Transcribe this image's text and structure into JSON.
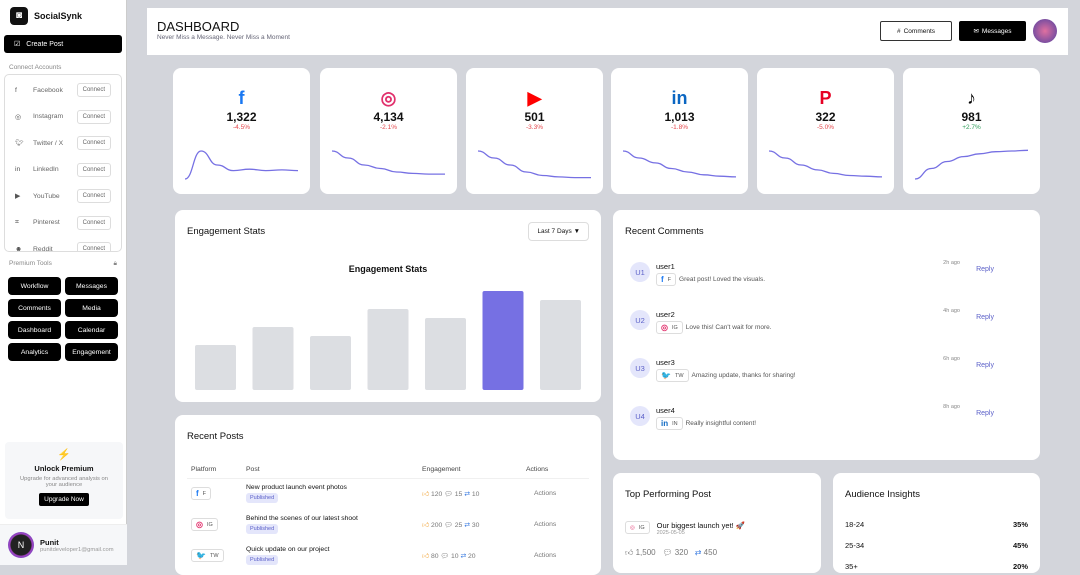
{
  "app": {
    "name": "SocialSynk",
    "create_post": "Create Post"
  },
  "sidebar": {
    "connect_title": "Connect Accounts",
    "connect_label": "Connect",
    "accounts": [
      {
        "name": "Facebook",
        "icon": "facebook-icon"
      },
      {
        "name": "Instagram",
        "icon": "instagram-icon"
      },
      {
        "name": "Twitter / X",
        "icon": "twitter-icon"
      },
      {
        "name": "LinkedIn",
        "icon": "linkedin-icon"
      },
      {
        "name": "YouTube",
        "icon": "youtube-icon"
      },
      {
        "name": "Pinterest",
        "icon": "pinterest-icon"
      },
      {
        "name": "Reddit",
        "icon": "reddit-icon"
      }
    ],
    "premium_title": "Premium Tools",
    "tools": [
      "Workflow",
      "Messages",
      "Comments",
      "Media",
      "Dashboard",
      "Calendar",
      "Analytics",
      "Engagement"
    ],
    "promo": {
      "title": "Unlock Premium",
      "desc": "Upgrade for advanced analysis on your audience",
      "button": "Upgrade Now"
    },
    "user": {
      "name": "Punit",
      "email": "punitdeveloper1@gmail.com",
      "initial": "N"
    }
  },
  "header": {
    "title": "DASHBOARD",
    "subtitle": "Never Miss a Message. Never Miss a Moment",
    "comments": "Comments",
    "messages": "Messages"
  },
  "stats": [
    {
      "platform": "facebook",
      "glyph": "f",
      "color": "#1877f2",
      "value": "1,322",
      "change": "-4.5%",
      "trend": [
        2,
        6,
        4,
        3.2,
        3.4,
        3.2,
        3.3,
        3.2
      ]
    },
    {
      "platform": "instagram",
      "glyph": "◎",
      "color": "#e1306c",
      "value": "4,134",
      "change": "-2.1%",
      "trend": [
        6,
        5,
        4,
        3.5,
        3,
        2.8,
        2.7,
        2.7
      ]
    },
    {
      "platform": "youtube",
      "glyph": "▶",
      "color": "#ff0000",
      "value": "501",
      "change": "-3.3%",
      "trend": [
        6,
        5,
        4,
        3,
        2.5,
        2.3,
        2.2,
        2.2
      ]
    },
    {
      "platform": "linkedin",
      "glyph": "in",
      "color": "#0a66c2",
      "value": "1,013",
      "change": "-1.8%",
      "trend": [
        6,
        5,
        4.3,
        3.5,
        3,
        2.6,
        2.4,
        2.3
      ]
    },
    {
      "platform": "pinterest",
      "glyph": "P",
      "color": "#e60023",
      "value": "322",
      "change": "-5.0%",
      "trend": [
        6,
        5,
        4,
        3.3,
        2.8,
        2.5,
        2.4,
        2.3
      ]
    },
    {
      "platform": "tiktok",
      "glyph": "♪",
      "color": "#000000",
      "value": "981",
      "change": "+2.7%",
      "trend": [
        2,
        3.5,
        4.5,
        5.2,
        5.6,
        5.9,
        6,
        6.1
      ]
    }
  ],
  "colors": {
    "negative": "#e5484d",
    "positive": "#2f9e5a",
    "accent": "#7670e3",
    "bar": "#dcdee2"
  },
  "engagement": {
    "title": "Engagement Stats",
    "range": "Last 7 Days ▼",
    "chart_data": {
      "type": "bar",
      "title": "Engagement Stats",
      "values": [
        45,
        63,
        54,
        81,
        72,
        99,
        90
      ],
      "highlight_index": 5
    }
  },
  "comments": {
    "title": "Recent Comments",
    "reply": "Reply",
    "items": [
      {
        "avatar": "U1",
        "user": "user1",
        "tag": "F",
        "glyph": "f",
        "color": "#1877f2",
        "text": "Great post! Loved the visuals.",
        "time": "2h ago"
      },
      {
        "avatar": "U2",
        "user": "user2",
        "tag": "IG",
        "glyph": "◎",
        "color": "#e1306c",
        "text": "Love this! Can't wait for more.",
        "time": "4h ago"
      },
      {
        "avatar": "U3",
        "user": "user3",
        "tag": "TW",
        "glyph": "🐦",
        "color": "#1da1f2",
        "text": "Amazing update, thanks for sharing!",
        "time": "6h ago"
      },
      {
        "avatar": "U4",
        "user": "user4",
        "tag": "IN",
        "glyph": "in",
        "color": "#0a66c2",
        "text": "Really insightful content!",
        "time": "8h ago"
      }
    ]
  },
  "posts": {
    "title": "Recent Posts",
    "columns": [
      "Platform",
      "Post",
      "Engagement",
      "Actions"
    ],
    "rows": [
      {
        "tag": "F",
        "glyph": "f",
        "color": "#1877f2",
        "post": "New product launch event photos",
        "status": "Published",
        "likes": "120",
        "comments": "15",
        "shares": "10",
        "action": "Actions"
      },
      {
        "tag": "IG",
        "glyph": "◎",
        "color": "#e1306c",
        "post": "Behind the scenes of our latest shoot",
        "status": "Published",
        "likes": "200",
        "comments": "25",
        "shares": "30",
        "action": "Actions"
      },
      {
        "tag": "TW",
        "glyph": "🐦",
        "color": "#1da1f2",
        "post": "Quick update on our project",
        "status": "Published",
        "likes": "80",
        "comments": "10",
        "shares": "20",
        "action": "Actions"
      }
    ]
  },
  "top_post": {
    "title": "Top Performing Post",
    "tag": "IG",
    "text": "Our biggest launch yet! 🚀",
    "date": "2025-05-05",
    "likes": "1,500",
    "comments": "320",
    "shares": "450"
  },
  "audience": {
    "title": "Audience Insights",
    "rows": [
      {
        "label": "18-24",
        "value": "35%"
      },
      {
        "label": "25-34",
        "value": "45%"
      },
      {
        "label": "35+",
        "value": "20%"
      }
    ]
  }
}
